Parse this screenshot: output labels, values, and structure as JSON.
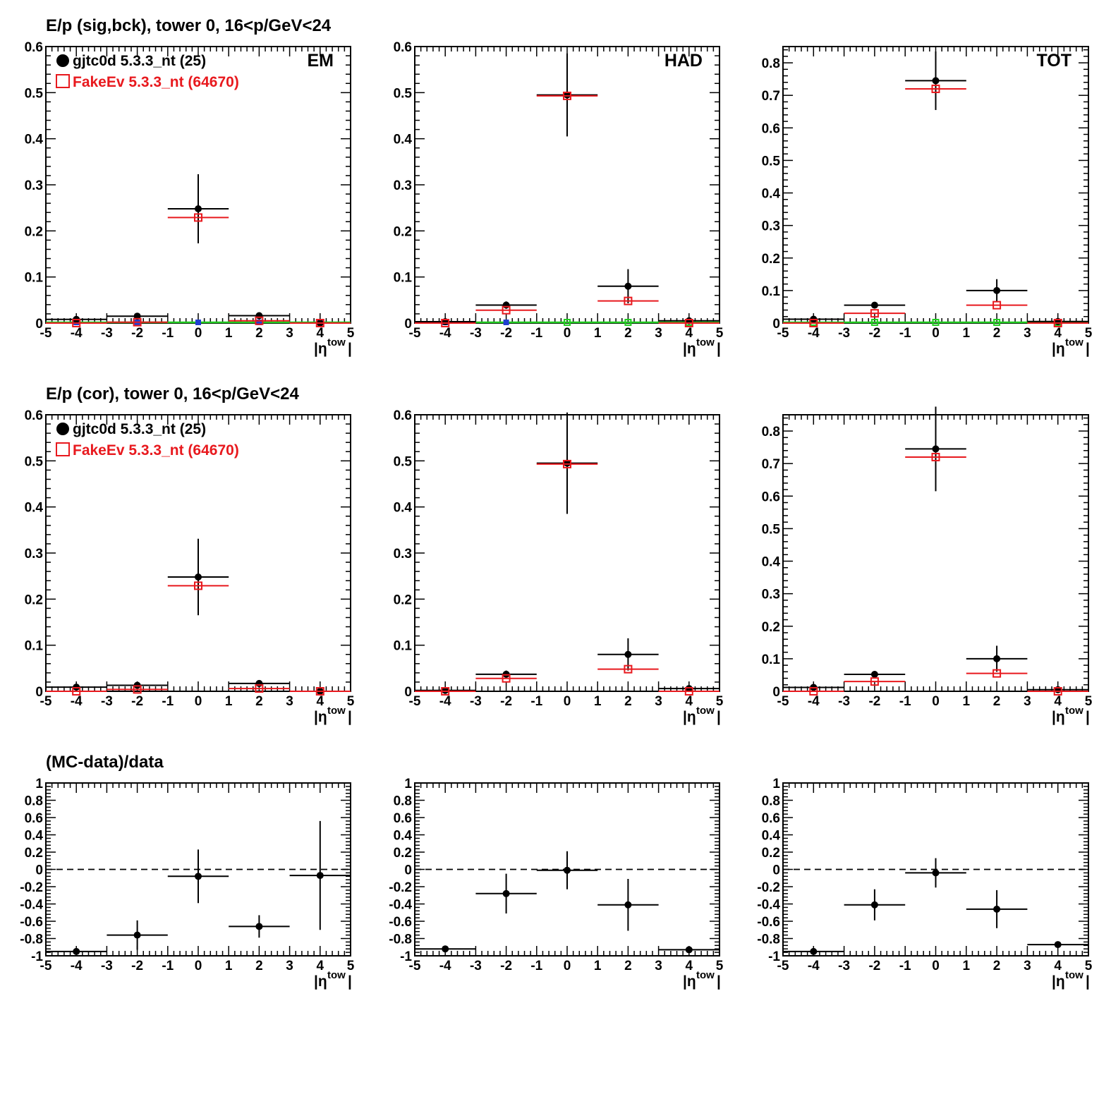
{
  "colors": {
    "data": "#000000",
    "mc": "#e8191e",
    "zero_green": "#22cc22",
    "marker_blue": "#1f3fd1",
    "zero_line": "#000000"
  },
  "rows": [
    {
      "title": "E/p (sig,bck), tower 0, 16<p/GeV<24"
    },
    {
      "title": "E/p (cor), tower 0, 16<p/GeV<24"
    },
    {
      "title": "(MC-data)/data"
    }
  ],
  "legend": {
    "data_label": "gjtc0d 5.3.3_nt (25)",
    "mc_label": "FakeEv 5.3.3_nt (64670)"
  },
  "x_axis": {
    "label_main": "|η",
    "label_sup": "tow",
    "label_end": "|",
    "ticks": [
      "-5",
      "-4",
      "-3",
      "-2",
      "-1",
      "0",
      "1",
      "2",
      "3",
      "4",
      "5"
    ],
    "range": [
      -5,
      5
    ]
  },
  "chart_data": [
    {
      "type": "scatter",
      "row": 0,
      "col": 0,
      "panel_label": "EM",
      "ylim": [
        0,
        0.6
      ],
      "yticks": [
        "0",
        "0.1",
        "0.2",
        "0.3",
        "0.4",
        "0.5",
        "0.6"
      ],
      "show_legend": true,
      "zero_markers": true,
      "x": [
        -4,
        -2,
        0,
        2,
        4
      ],
      "xerr": [
        1,
        1,
        1,
        1,
        1
      ],
      "series": [
        {
          "name": "gjtc0d 5.3.3_nt (25)",
          "values": [
            0.008,
            0.015,
            0.248,
            0.016,
            0.0
          ],
          "err": [
            0.003,
            0.004,
            0.075,
            0.004,
            0.0
          ]
        },
        {
          "name": "FakeEv 5.3.3_nt (64670)",
          "values": [
            0.0,
            0.002,
            0.229,
            0.005,
            0.0
          ],
          "err": [
            0.0,
            0.0,
            0.0,
            0.0,
            0.0
          ]
        }
      ]
    },
    {
      "type": "scatter",
      "row": 0,
      "col": 1,
      "panel_label": "HAD",
      "ylim": [
        0,
        0.6
      ],
      "yticks": [
        "0",
        "0.1",
        "0.2",
        "0.3",
        "0.4",
        "0.5",
        "0.6"
      ],
      "show_legend": false,
      "zero_markers": true,
      "x": [
        -4,
        -2,
        0,
        2,
        4
      ],
      "xerr": [
        1,
        1,
        1,
        1,
        1
      ],
      "series": [
        {
          "name": "gjtc0d 5.3.3_nt (25)",
          "values": [
            0.003,
            0.039,
            0.495,
            0.08,
            0.005
          ],
          "err": [
            0.002,
            0.008,
            0.09,
            0.037,
            0.003
          ]
        },
        {
          "name": "FakeEv 5.3.3_nt (64670)",
          "values": [
            0.0,
            0.028,
            0.493,
            0.048,
            0.0
          ],
          "err": [
            0.0,
            0.0,
            0.0,
            0.0,
            0.0
          ]
        }
      ]
    },
    {
      "type": "scatter",
      "row": 0,
      "col": 2,
      "panel_label": "TOT",
      "ylim": [
        0,
        0.85
      ],
      "yticks": [
        "0",
        "0.1",
        "0.2",
        "0.3",
        "0.4",
        "0.5",
        "0.6",
        "0.7",
        "0.8"
      ],
      "show_legend": false,
      "zero_markers": true,
      "x": [
        -4,
        -2,
        0,
        2,
        4
      ],
      "xerr": [
        1,
        1,
        1,
        1,
        1
      ],
      "series": [
        {
          "name": "gjtc0d 5.3.3_nt (25)",
          "values": [
            0.012,
            0.055,
            0.745,
            0.1,
            0.005
          ],
          "err": [
            0.004,
            0.008,
            0.09,
            0.035,
            0.003
          ]
        },
        {
          "name": "FakeEv 5.3.3_nt (64670)",
          "values": [
            0.0,
            0.03,
            0.72,
            0.055,
            0.0
          ],
          "err": [
            0.0,
            0.0,
            0.0,
            0.0,
            0.0
          ]
        }
      ]
    },
    {
      "type": "scatter",
      "row": 1,
      "col": 0,
      "ylim": [
        0,
        0.6
      ],
      "yticks": [
        "0",
        "0.1",
        "0.2",
        "0.3",
        "0.4",
        "0.5",
        "0.6"
      ],
      "show_legend": true,
      "zero_markers": false,
      "x": [
        -4,
        -2,
        0,
        2,
        4
      ],
      "xerr": [
        1,
        1,
        1,
        1,
        1
      ],
      "series": [
        {
          "name": "gjtc0d 5.3.3_nt (25)",
          "values": [
            0.009,
            0.013,
            0.248,
            0.017,
            0.0
          ],
          "err": [
            0.003,
            0.004,
            0.083,
            0.004,
            0.0
          ]
        },
        {
          "name": "FakeEv 5.3.3_nt (64670)",
          "values": [
            0.0,
            0.004,
            0.229,
            0.006,
            0.0
          ],
          "err": [
            0.0,
            0.0,
            0.0,
            0.0,
            0.0
          ]
        }
      ]
    },
    {
      "type": "scatter",
      "row": 1,
      "col": 1,
      "ylim": [
        0,
        0.6
      ],
      "yticks": [
        "0",
        "0.1",
        "0.2",
        "0.3",
        "0.4",
        "0.5",
        "0.6"
      ],
      "show_legend": false,
      "zero_markers": false,
      "x": [
        -4,
        -2,
        0,
        2,
        4
      ],
      "xerr": [
        1,
        1,
        1,
        1,
        1
      ],
      "series": [
        {
          "name": "gjtc0d 5.3.3_nt (25)",
          "values": [
            0.002,
            0.037,
            0.495,
            0.08,
            0.006
          ],
          "err": [
            0.002,
            0.008,
            0.11,
            0.035,
            0.003
          ]
        },
        {
          "name": "FakeEv 5.3.3_nt (64670)",
          "values": [
            0.0,
            0.028,
            0.493,
            0.048,
            0.0
          ],
          "err": [
            0.0,
            0.0,
            0.0,
            0.0,
            0.0
          ]
        }
      ]
    },
    {
      "type": "scatter",
      "row": 1,
      "col": 2,
      "ylim": [
        0,
        0.85
      ],
      "yticks": [
        "0",
        "0.1",
        "0.2",
        "0.3",
        "0.4",
        "0.5",
        "0.6",
        "0.7",
        "0.8"
      ],
      "show_legend": false,
      "zero_markers": false,
      "x": [
        -4,
        -2,
        0,
        2,
        4
      ],
      "xerr": [
        1,
        1,
        1,
        1,
        1
      ],
      "series": [
        {
          "name": "gjtc0d 5.3.3_nt (25)",
          "values": [
            0.012,
            0.052,
            0.745,
            0.1,
            0.005
          ],
          "err": [
            0.004,
            0.008,
            0.13,
            0.04,
            0.003
          ]
        },
        {
          "name": "FakeEv 5.3.3_nt (64670)",
          "values": [
            0.0,
            0.03,
            0.72,
            0.055,
            0.0
          ],
          "err": [
            0.0,
            0.0,
            0.0,
            0.0,
            0.0
          ]
        }
      ]
    },
    {
      "type": "scatter",
      "row": 2,
      "col": 0,
      "ylim": [
        -1,
        1
      ],
      "yticks": [
        "-1",
        "-0.8",
        "-0.6",
        "-0.4",
        "-0.2",
        "0",
        "0.2",
        "0.4",
        "0.6",
        "0.8",
        "1"
      ],
      "show_legend": false,
      "zero_markers": false,
      "zero_line": true,
      "x": [
        -4,
        -2,
        0,
        2,
        4
      ],
      "xerr": [
        1,
        1,
        1,
        1,
        1
      ],
      "series": [
        {
          "name": "(MC-data)/data",
          "values": [
            -0.95,
            -0.76,
            -0.08,
            -0.66,
            -0.07
          ],
          "err": [
            0.0,
            0.17,
            0.31,
            0.13,
            0.63
          ]
        }
      ]
    },
    {
      "type": "scatter",
      "row": 2,
      "col": 1,
      "ylim": [
        -1,
        1
      ],
      "yticks": [
        "-1",
        "-0.8",
        "-0.6",
        "-0.4",
        "-0.2",
        "0",
        "0.2",
        "0.4",
        "0.6",
        "0.8",
        "1"
      ],
      "show_legend": false,
      "zero_markers": false,
      "zero_line": true,
      "x": [
        -4,
        -2,
        0,
        2,
        4
      ],
      "xerr": [
        1,
        1,
        1,
        1,
        1
      ],
      "series": [
        {
          "name": "(MC-data)/data",
          "values": [
            -0.92,
            -0.28,
            -0.01,
            -0.41,
            -0.93
          ],
          "err": [
            0.0,
            0.23,
            0.22,
            0.3,
            0.0
          ]
        }
      ]
    },
    {
      "type": "scatter",
      "row": 2,
      "col": 2,
      "ylim": [
        -1,
        1
      ],
      "yticks": [
        "-1",
        "-0.8",
        "-0.6",
        "-0.4",
        "-0.2",
        "0",
        "0.2",
        "0.4",
        "0.6",
        "0.8",
        "1"
      ],
      "show_legend": false,
      "zero_markers": false,
      "zero_line": true,
      "x": [
        -4,
        -2,
        0,
        2,
        4
      ],
      "xerr": [
        1,
        1,
        1,
        1,
        1
      ],
      "series": [
        {
          "name": "(MC-data)/data",
          "values": [
            -0.95,
            -0.41,
            -0.04,
            -0.46,
            -0.87
          ],
          "err": [
            0.0,
            0.18,
            0.17,
            0.22,
            0.0
          ]
        }
      ]
    }
  ]
}
